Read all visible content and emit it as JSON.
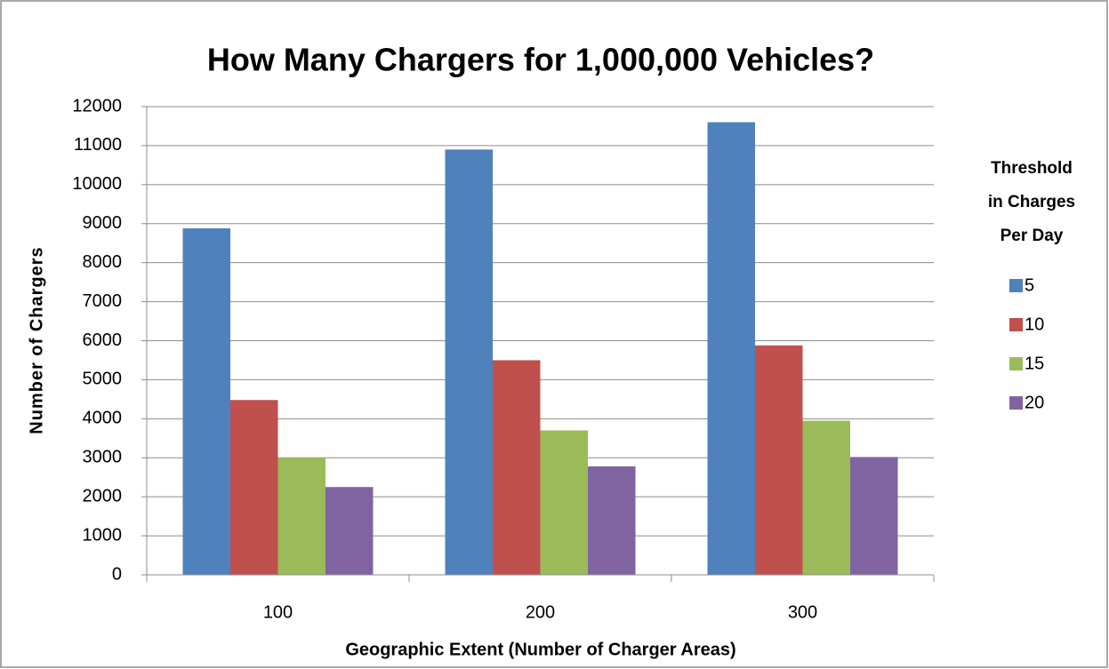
{
  "chart_data": {
    "type": "bar",
    "title": "How Many Chargers for 1,000,000 Vehicles?",
    "x_label": "Geographic Extent (Number of Charger Areas)",
    "y_label": "Number of Chargers",
    "legend_title": [
      "Threshold",
      "in Charges",
      "Per Day"
    ],
    "legend_position": "right",
    "grid": true,
    "categories": [
      "100",
      "200",
      "300"
    ],
    "series": [
      {
        "name": "5",
        "color": "#4f81bd",
        "values": [
          8880,
          10900,
          11600
        ]
      },
      {
        "name": "10",
        "color": "#c0504d",
        "values": [
          4480,
          5500,
          5880
        ]
      },
      {
        "name": "15",
        "color": "#9bbb59",
        "values": [
          3000,
          3700,
          3950
        ]
      },
      {
        "name": "20",
        "color": "#8064a2",
        "values": [
          2250,
          2780,
          3020
        ]
      }
    ],
    "ylim": [
      0,
      12000
    ],
    "yticks": [
      0,
      1000,
      2000,
      3000,
      4000,
      5000,
      6000,
      7000,
      8000,
      9000,
      10000,
      11000,
      12000
    ]
  }
}
